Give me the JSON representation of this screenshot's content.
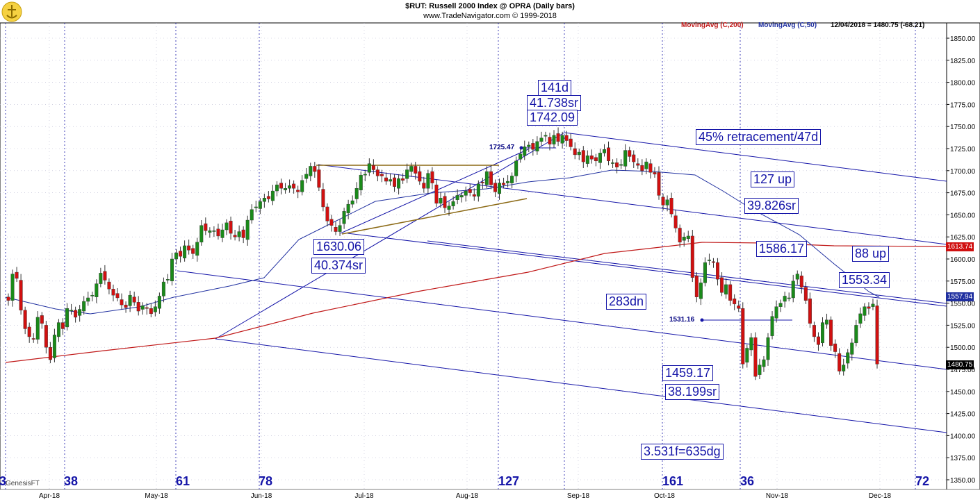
{
  "header": {
    "title": "$RUT:  Russell 2000 Index @ OPRA  (Daily bars)",
    "subtitle": "www.TradeNavigator.com © 1999-2018"
  },
  "legend": {
    "ma200": "MovingAvg (C,200)",
    "ma50": "MovingAvg (C,50)",
    "quote": "12/04/2018 = 1480.75 (-68.21)"
  },
  "footer": {
    "source": "GenesisFT"
  },
  "badges": {
    "ma200": "1613.74",
    "ma50": "1557.94",
    "last": "1480.75"
  },
  "annotations": {
    "d141": "141d",
    "sr41": "41.738sr",
    "p1742": "1742.09",
    "ret45": "45% retracement/47d",
    "up127": "127 up",
    "sr39": "39.826sr",
    "p1630": "1630.06",
    "sr40": "40.374sr",
    "p1586": "1586.17",
    "up88": "88 up",
    "p1553": "1553.34",
    "dn283": "283dn",
    "p1459": "1459.17",
    "sr38": "38.199sr",
    "f3531": "3.531f=635dg",
    "p1725": "1725.47",
    "p1531": "1531.16"
  },
  "day_counts": [
    "3",
    "38",
    "61",
    "78",
    "127",
    "161",
    "36",
    "72"
  ],
  "colors": {
    "up_candle": "#1a8a1a",
    "down_candle": "#d01010",
    "ma50": "#2030a0",
    "ma200": "#c01818",
    "channel": "#1515a8",
    "triangle": "#8b6914",
    "background": "#ffffff"
  },
  "chart_data": {
    "type": "candlestick",
    "title": "$RUT:  Russell 2000 Index @ OPRA  (Daily bars)",
    "ylim": [
      1340,
      1865
    ],
    "y_ticks": [
      "1350.00",
      "1375.00",
      "1400.00",
      "1425.00",
      "1450.00",
      "1475.00",
      "1500.00",
      "1525.00",
      "1550.00",
      "1575.00",
      "1600.00",
      "1625.00",
      "1650.00",
      "1675.00",
      "1700.00",
      "1725.00",
      "1750.00",
      "1775.00",
      "1800.00",
      "1825.00",
      "1850.00"
    ],
    "x_labels": [
      "Apr-18",
      "May-18",
      "Jun-18",
      "Jul-18",
      "Aug-18",
      "Sep-18",
      "Oct-18",
      "Nov-18",
      "Dec-18"
    ],
    "grid": true,
    "last_close": 1480.75,
    "change": -68.21,
    "ma200_last": 1613.74,
    "ma50_last": 1557.94,
    "closes": [
      1553,
      1583,
      1578,
      1542,
      1521,
      1512,
      1509,
      1534,
      1527,
      1500,
      1486,
      1514,
      1528,
      1521,
      1544,
      1542,
      1534,
      1543,
      1552,
      1556,
      1559,
      1572,
      1584,
      1576,
      1566,
      1559,
      1556,
      1548,
      1545,
      1559,
      1551,
      1541,
      1547,
      1544,
      1538,
      1546,
      1558,
      1574,
      1577,
      1600,
      1607,
      1603,
      1615,
      1610,
      1606,
      1619,
      1638,
      1632,
      1632,
      1632,
      1626,
      1633,
      1641,
      1629,
      1625,
      1631,
      1624,
      1644,
      1656,
      1659,
      1665,
      1669,
      1668,
      1677,
      1684,
      1680,
      1680,
      1683,
      1680,
      1676,
      1689,
      1696,
      1705,
      1699,
      1681,
      1659,
      1643,
      1638,
      1631,
      1638,
      1654,
      1662,
      1666,
      1680,
      1695,
      1696,
      1708,
      1701,
      1694,
      1694,
      1688,
      1690,
      1682,
      1691,
      1689,
      1701,
      1705,
      1697,
      1688,
      1680,
      1697,
      1686,
      1663,
      1669,
      1658,
      1660,
      1665,
      1672,
      1672,
      1677,
      1675,
      1671,
      1685,
      1686,
      1699,
      1684,
      1676,
      1686,
      1684,
      1688,
      1694,
      1711,
      1719,
      1727,
      1729,
      1724,
      1733,
      1737,
      1740,
      1730,
      1740,
      1733,
      1740,
      1734,
      1727,
      1718,
      1721,
      1710,
      1717,
      1713,
      1711,
      1720,
      1724,
      1711,
      1709,
      1704,
      1707,
      1723,
      1716,
      1710,
      1706,
      1700,
      1710,
      1698,
      1696,
      1672,
      1661,
      1667,
      1651,
      1635,
      1619,
      1625,
      1626,
      1579,
      1557,
      1573,
      1596,
      1599,
      1596,
      1577,
      1562,
      1571,
      1553,
      1549,
      1544,
      1481,
      1499,
      1511,
      1467,
      1480,
      1486,
      1511,
      1535,
      1546,
      1550,
      1558,
      1556,
      1575,
      1583,
      1568,
      1553,
      1527,
      1512,
      1503,
      1528,
      1531,
      1502,
      1495,
      1473,
      1480,
      1494,
      1505,
      1525,
      1538,
      1546,
      1544,
      1549,
      1481
    ]
  }
}
